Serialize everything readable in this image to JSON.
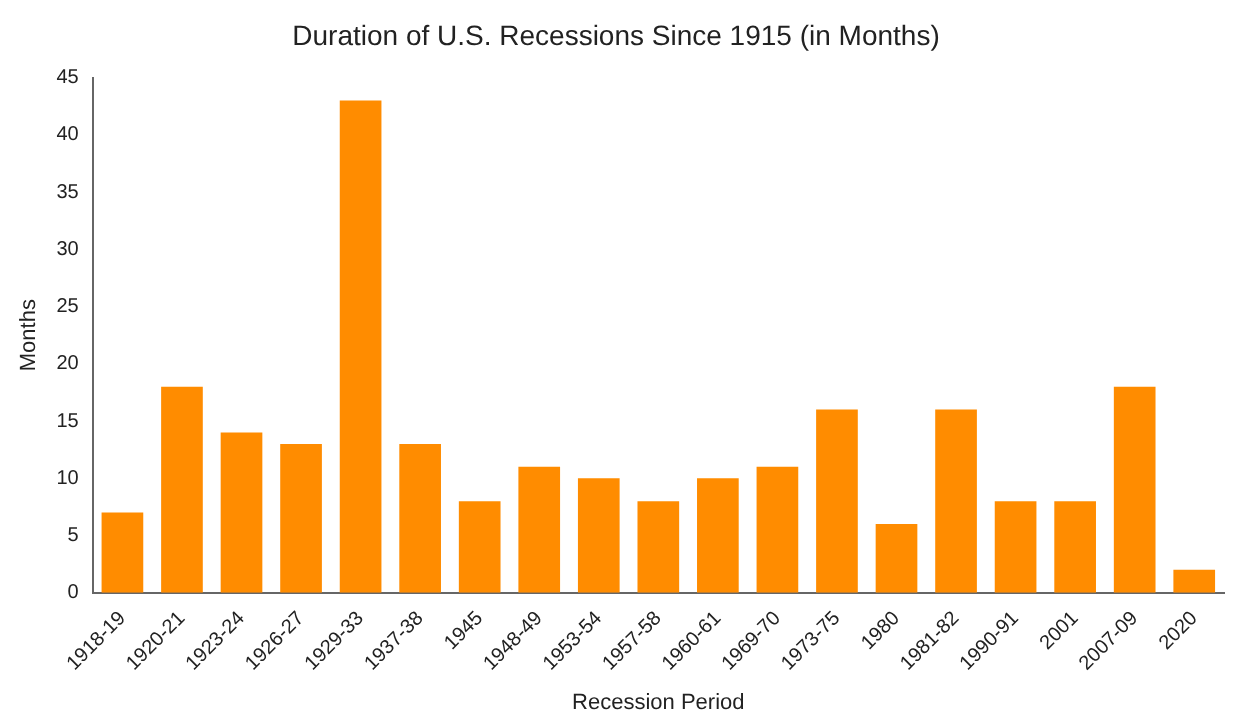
{
  "chart_data": {
    "type": "bar",
    "title": "Duration of U.S. Recessions Since 1915 (in Months)",
    "xlabel": "Recession Period",
    "ylabel": "Months",
    "categories": [
      "1918-19",
      "1920-21",
      "1923-24",
      "1926-27",
      "1929-33",
      "1937-38",
      "1945",
      "1948-49",
      "1953-54",
      "1957-58",
      "1960-61",
      "1969-70",
      "1973-75",
      "1980",
      "1981-82",
      "1990-91",
      "2001",
      "2007-09",
      "2020"
    ],
    "values": [
      7,
      18,
      14,
      13,
      43,
      13,
      8,
      11,
      10,
      8,
      10,
      11,
      16,
      6,
      16,
      8,
      8,
      18,
      2
    ],
    "color": "#ff8c00",
    "ylim": [
      0,
      45
    ],
    "yticks": [
      0,
      5,
      10,
      15,
      20,
      25,
      30,
      35,
      40,
      45
    ],
    "grid": false,
    "legend": false
  }
}
